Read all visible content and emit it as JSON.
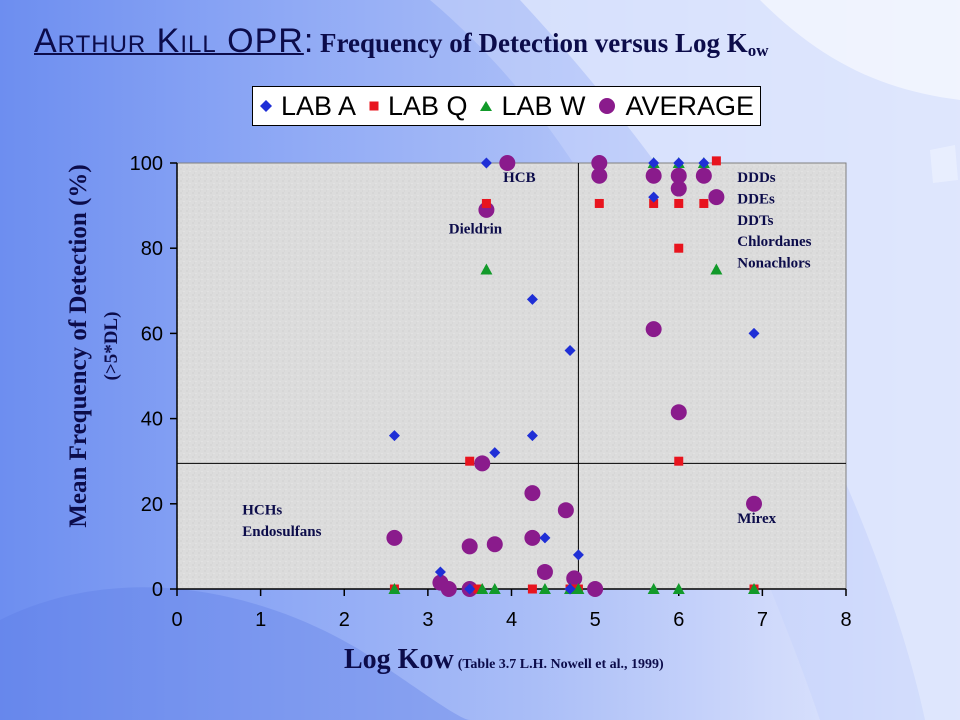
{
  "slide": {
    "title_brand": "Arthur Kill OPR",
    "title_colon": ":",
    "title_rest": " Frequency of Detection versus Log K",
    "title_sub": "ow"
  },
  "colors": {
    "lab_a": "#1f2fd6",
    "lab_q": "#e8141e",
    "lab_w": "#129a2a",
    "average": "#8a1b8c",
    "plot_bg": "#dcdcdc",
    "text": "#0c0c4a"
  },
  "chart_data": {
    "type": "scatter",
    "xlabel": "Log Kow",
    "xlabel_note": "(Table 3.7 L.H. Nowell et al., 1999)",
    "ylabel": "Mean Frequency of Detection (%)",
    "ylabel_sub": "(>5*DL)",
    "xlim": [
      0,
      8
    ],
    "ylim": [
      0,
      100
    ],
    "xticks": [
      "0",
      "1",
      "2",
      "3",
      "4",
      "5",
      "6",
      "7",
      "8"
    ],
    "yticks": [
      "0",
      "20",
      "40",
      "60",
      "80",
      "100"
    ],
    "reference_lines": {
      "x": 4.8,
      "y": 29.5
    },
    "legend": {
      "position": "top",
      "entries": [
        "LAB A",
        "LAB Q",
        "LAB W",
        "AVERAGE"
      ]
    },
    "annotations": [
      {
        "text": "HCB",
        "x": 3.9,
        "y": 95.5
      },
      {
        "text": "Dieldrin",
        "x": 3.25,
        "y": 83.5
      },
      {
        "text": "DDDs",
        "x": 6.7,
        "y": 95.5
      },
      {
        "text": "DDEs",
        "x": 6.7,
        "y": 90.5
      },
      {
        "text": "DDTs",
        "x": 6.7,
        "y": 85.5
      },
      {
        "text": "Chlordanes",
        "x": 6.7,
        "y": 80.5
      },
      {
        "text": "Nonachlors",
        "x": 6.7,
        "y": 75.5
      },
      {
        "text": "HCHs",
        "x": 0.78,
        "y": 17.5
      },
      {
        "text": "Endosulfans",
        "x": 0.78,
        "y": 12.5
      },
      {
        "text": "Mirex",
        "x": 6.7,
        "y": 15.5
      }
    ],
    "series": [
      {
        "name": "LAB A",
        "marker": "diamond",
        "points": [
          [
            2.6,
            36
          ],
          [
            3.15,
            4
          ],
          [
            3.8,
            32
          ],
          [
            3.7,
            100
          ],
          [
            4.25,
            68
          ],
          [
            4.25,
            36
          ],
          [
            4.4,
            12
          ],
          [
            4.7,
            56
          ],
          [
            4.8,
            8
          ],
          [
            5.7,
            92
          ],
          [
            5.7,
            100
          ],
          [
            6.0,
            100
          ],
          [
            6.3,
            100
          ],
          [
            6.9,
            60
          ],
          [
            3.5,
            0
          ],
          [
            4.7,
            0
          ]
        ]
      },
      {
        "name": "LAB Q",
        "marker": "square",
        "points": [
          [
            3.5,
            30
          ],
          [
            3.7,
            90.5
          ],
          [
            5.05,
            90.5
          ],
          [
            5.7,
            90.5
          ],
          [
            6.0,
            90.5
          ],
          [
            6.0,
            80
          ],
          [
            6.0,
            30
          ],
          [
            6.3,
            90.5
          ],
          [
            6.45,
            100.5
          ],
          [
            2.6,
            0
          ],
          [
            3.6,
            0
          ],
          [
            4.25,
            0
          ],
          [
            4.7,
            0
          ],
          [
            4.8,
            0
          ],
          [
            6.9,
            0
          ]
        ]
      },
      {
        "name": "LAB W",
        "marker": "triangle",
        "points": [
          [
            3.7,
            75
          ],
          [
            5.7,
            100
          ],
          [
            6.0,
            100
          ],
          [
            6.3,
            100
          ],
          [
            6.45,
            75
          ],
          [
            2.6,
            0
          ],
          [
            3.65,
            0
          ],
          [
            3.8,
            0
          ],
          [
            4.4,
            0
          ],
          [
            4.7,
            0
          ],
          [
            4.8,
            0
          ],
          [
            5.7,
            0
          ],
          [
            6.0,
            0
          ],
          [
            6.9,
            0
          ]
        ]
      },
      {
        "name": "AVERAGE",
        "marker": "circle",
        "points": [
          [
            2.6,
            12
          ],
          [
            3.15,
            1.5
          ],
          [
            3.25,
            0
          ],
          [
            3.5,
            10
          ],
          [
            3.5,
            0
          ],
          [
            3.65,
            29.5
          ],
          [
            3.7,
            89
          ],
          [
            3.8,
            10.5
          ],
          [
            3.95,
            100
          ],
          [
            4.25,
            22.5
          ],
          [
            4.25,
            12
          ],
          [
            4.4,
            4
          ],
          [
            4.65,
            18.5
          ],
          [
            4.75,
            2.5
          ],
          [
            5.0,
            0
          ],
          [
            5.05,
            100
          ],
          [
            5.05,
            97
          ],
          [
            5.7,
            97
          ],
          [
            5.7,
            61
          ],
          [
            6.0,
            97
          ],
          [
            6.0,
            94
          ],
          [
            6.0,
            41.5
          ],
          [
            6.3,
            97
          ],
          [
            6.45,
            92
          ],
          [
            6.9,
            20
          ]
        ]
      }
    ]
  }
}
